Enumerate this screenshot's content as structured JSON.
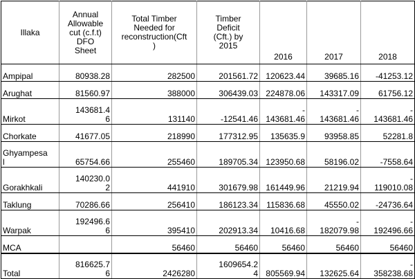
{
  "headers": [
    "Illaka",
    "Annual\nAllowable\ncut (c.f.t)\nDFO\nSheet",
    "Total Timber\nNeeded for\nreconstruction(Cft\n)",
    "Timber\nDeficit\n(Cft.) by\n2015",
    "2016",
    "2017",
    "2018"
  ],
  "rows": [
    {
      "cells": [
        "Ampipal",
        "80938.28",
        "282500",
        "201561.72",
        "120623.44",
        "39685.16",
        "-41253.12"
      ],
      "tall": false
    },
    {
      "cells": [
        "Arughat",
        "81560.97",
        "388000",
        "306439.03",
        "224878.06",
        "143317.09",
        "61756.12"
      ],
      "tall": false
    },
    {
      "cells": [
        "Mirkot",
        "143681.4\n6",
        "131140",
        "-12541.46",
        "-\n143681.46",
        "-\n143681.46",
        "-\n143681.46"
      ],
      "tall": true
    },
    {
      "cells": [
        "Chorkate",
        "41677.05",
        "218990",
        "177312.95",
        "135635.9",
        "93958.85",
        "52281.8"
      ],
      "tall": false
    },
    {
      "cells": [
        "Ghyampesa\nl",
        "65754.66",
        "255460",
        "189705.34",
        "123950.68",
        "58196.02",
        "-7558.64"
      ],
      "tall": true
    },
    {
      "cells": [
        "Gorakhkali",
        "140230.0\n2",
        "441910",
        "301679.98",
        "161449.96",
        "21219.94",
        "-\n119010.08"
      ],
      "tall": true
    },
    {
      "cells": [
        "Taklung",
        "70286.66",
        "256410",
        "186123.34",
        "115836.68",
        "45550.02",
        "-24736.64"
      ],
      "tall": false
    },
    {
      "cells": [
        "Warpak",
        "192496.6\n6",
        "395410",
        "202913.34",
        "10416.68",
        "-\n182079.98",
        "-\n192496.66"
      ],
      "tall": true
    },
    {
      "cells": [
        "MCA",
        "",
        "56460",
        "56460",
        "56460",
        "56460",
        "56460"
      ],
      "tall": false
    },
    {
      "cells": [
        "Total",
        "816625.7\n6",
        "2426280",
        "1609654.2\n4",
        "805569.94",
        "132625.64",
        "-\n358238.68"
      ],
      "tall": true
    }
  ]
}
